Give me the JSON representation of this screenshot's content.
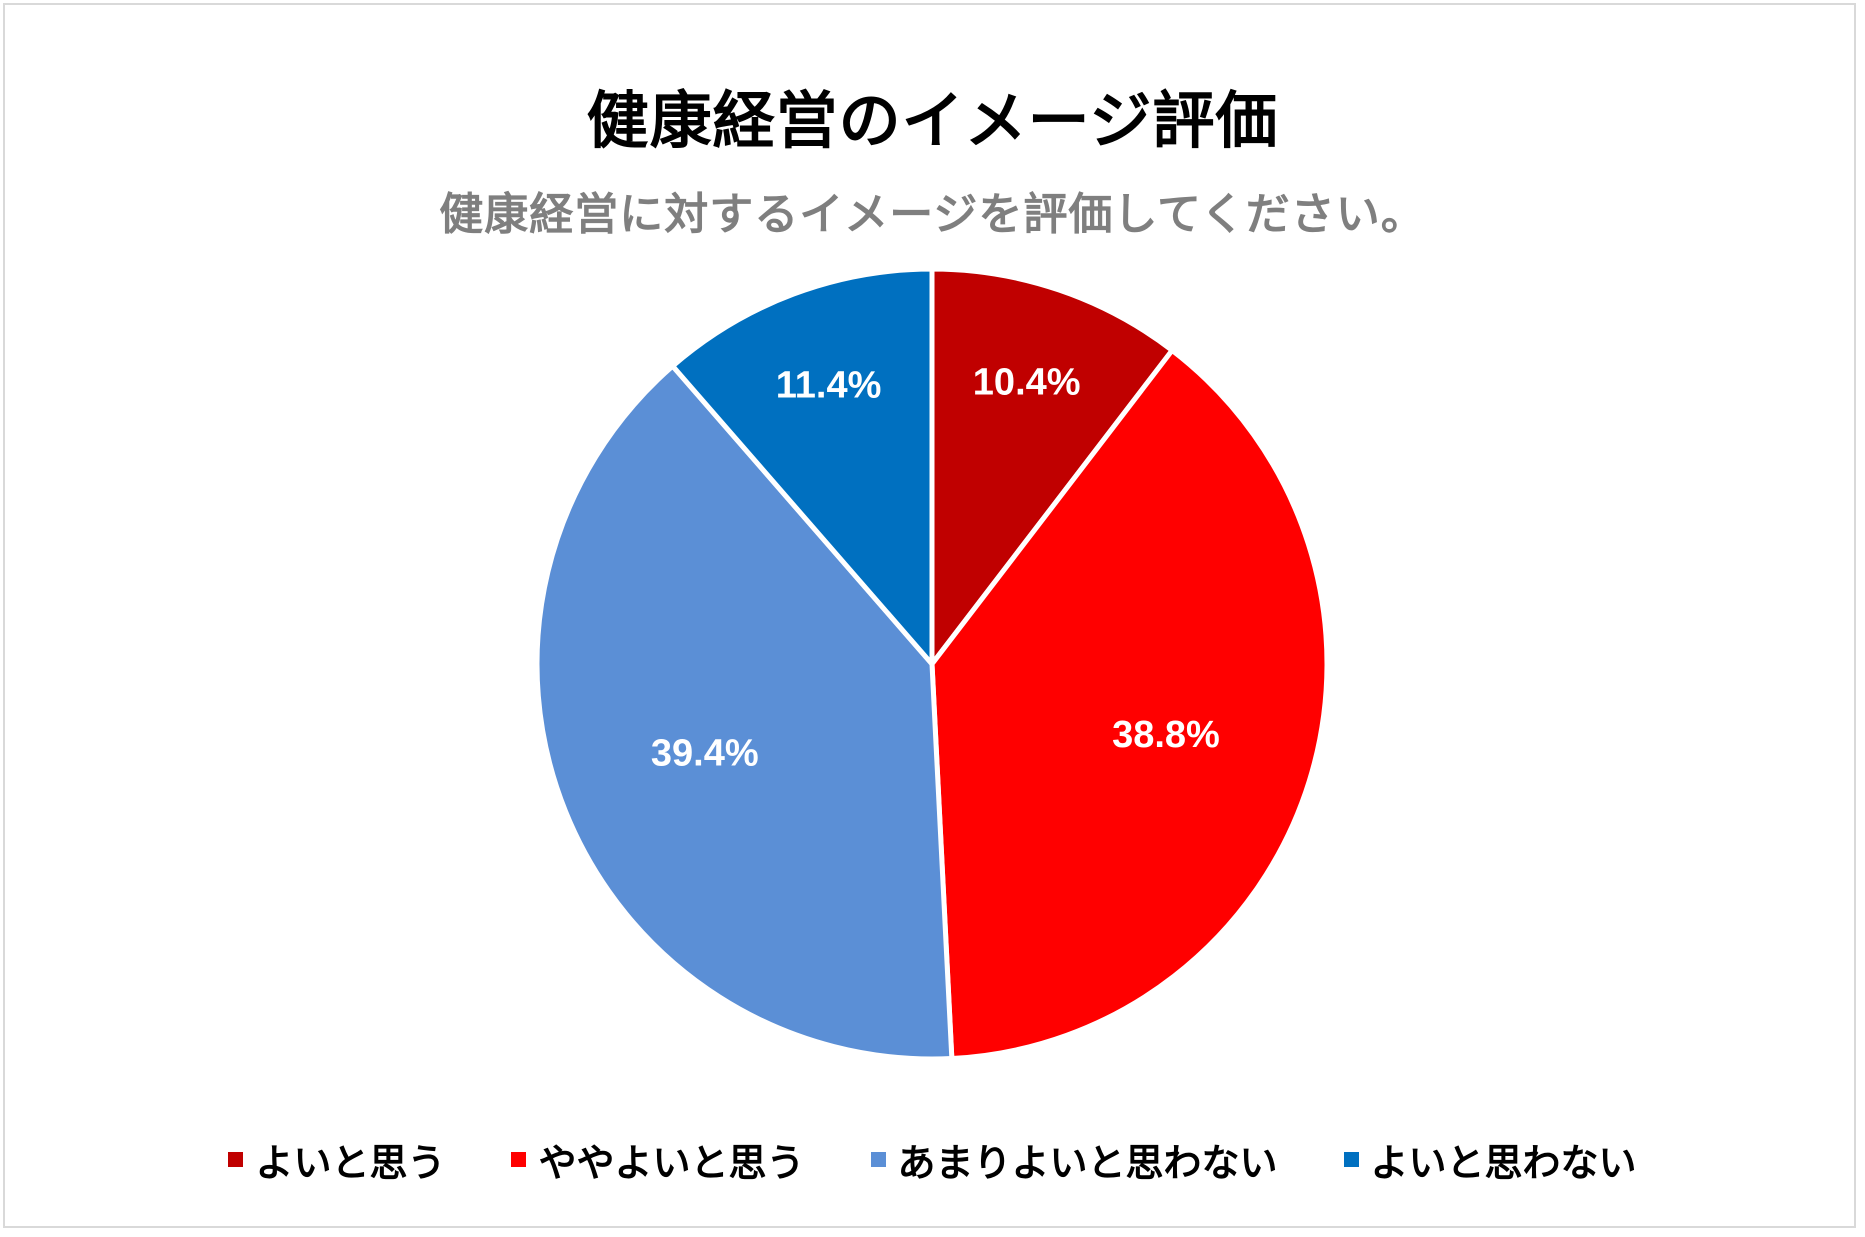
{
  "chart_data": {
    "type": "pie",
    "title": "健康経営のイメージ評価",
    "subtitle": "健康経営に対するイメージを評価してください。",
    "categories": [
      "よいと思う",
      "ややよいと思う",
      "あまりよいと思わない",
      "よいと思わない"
    ],
    "values": [
      10.4,
      38.8,
      39.4,
      11.4
    ],
    "value_labels": [
      "10.4%",
      "38.8%",
      "39.4%",
      "11.4%"
    ],
    "colors": [
      "#c00000",
      "#ff0000",
      "#5b8fd6",
      "#0070c0"
    ],
    "legend_position": "bottom",
    "start_angle": "top, clockwise"
  }
}
